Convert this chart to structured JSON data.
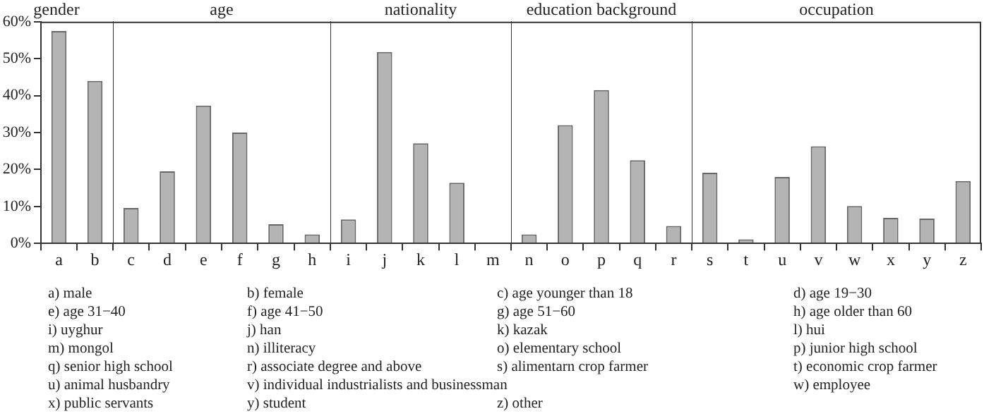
{
  "chart_data": [
    {
      "type": "bar",
      "title": "gender",
      "categories": [
        "a",
        "b"
      ],
      "values": [
        57.5,
        44.0
      ],
      "color": "#b4b4b4",
      "ylim": [
        0,
        60
      ],
      "yticks": [
        {
          "value": 0,
          "label": "0%"
        },
        {
          "value": 10,
          "label": "10%"
        },
        {
          "value": 20,
          "label": "20%"
        },
        {
          "value": 30,
          "label": "30%"
        },
        {
          "value": 40,
          "label": "40%"
        },
        {
          "value": 50,
          "label": "50%"
        },
        {
          "value": 60,
          "label": "60%"
        }
      ]
    },
    {
      "type": "bar",
      "title": "age",
      "categories": [
        "c",
        "d",
        "e",
        "f",
        "g",
        "h"
      ],
      "values": [
        9.6,
        19.5,
        37.3,
        30.0,
        5.2,
        2.4
      ],
      "color": "#b4b4b4",
      "ylim": [
        0,
        60
      ],
      "tick_labels": "x"
    },
    {
      "type": "bar",
      "title": "nationality",
      "categories": [
        "i",
        "j",
        "k",
        "l",
        "m"
      ],
      "values": [
        6.5,
        51.8,
        27.1,
        16.4,
        0
      ],
      "color": "#b4b4b4",
      "ylim": [
        0,
        60
      ],
      "tick_labels": "x"
    },
    {
      "type": "bar",
      "title": "education background",
      "categories": [
        "n",
        "o",
        "p",
        "q",
        "r"
      ],
      "values": [
        2.4,
        32.0,
        41.5,
        22.5,
        4.7
      ],
      "color": "#b4b4b4",
      "ylim": [
        0,
        60
      ],
      "tick_labels": "x"
    },
    {
      "type": "bar",
      "title": "occupation",
      "categories": [
        "s",
        "t",
        "u",
        "v",
        "w",
        "x",
        "y",
        "z"
      ],
      "values": [
        19.1,
        1.1,
        18.0,
        26.3,
        10.1,
        6.9,
        6.7,
        16.9
      ],
      "color": "#b4b4b4",
      "ylim": [
        0,
        60
      ],
      "tick_labels": "x"
    },
    {
      "type": "other",
      "annotations": [
        "a) male",
        "b) female",
        "c) age younger than 18",
        "d) age 19−30",
        "e) age 31−40",
        "f) age 41−50",
        "g) age 51−60",
        "h) age older than 60",
        "i) uyghur",
        "j) han",
        "k) kazak",
        "l) hui",
        "m) mongol",
        "n) illiteracy",
        "o) elementary school",
        "p) junior high school",
        "q) senior high school",
        "r) associate degree and above",
        "s) alimentarn crop farmer",
        "t) economic crop farmer",
        "u) animal husbandry",
        "v) individual industrialists and businessman",
        "w) employee",
        "x) public servants",
        "y) student",
        "z) other"
      ]
    }
  ]
}
